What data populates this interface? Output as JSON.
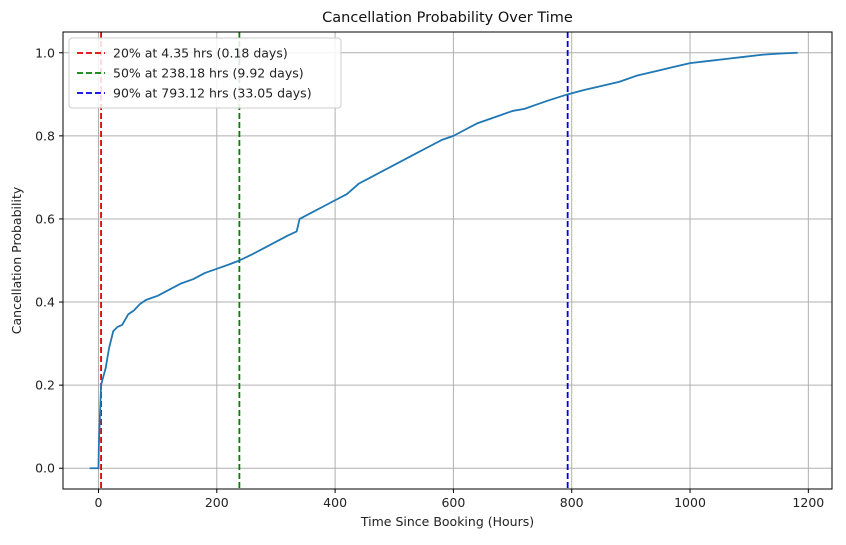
{
  "chart_data": {
    "type": "line",
    "title": "Cancellation Probability Over Time",
    "xlabel": "Time Since Booking (Hours)",
    "ylabel": "Cancellation Probability",
    "xlim": [
      -60,
      1240
    ],
    "ylim": [
      -0.05,
      1.05
    ],
    "xticks": [
      0,
      200,
      400,
      600,
      800,
      1000,
      1200
    ],
    "xtick_labels": [
      "0",
      "200",
      "400",
      "600",
      "800",
      "1000",
      "1200"
    ],
    "yticks": [
      0.0,
      0.2,
      0.4,
      0.6,
      0.8,
      1.0
    ],
    "ytick_labels": [
      "0.0",
      "0.2",
      "0.4",
      "0.6",
      "0.8",
      "1.0"
    ],
    "grid": true,
    "legend_position": "top-left",
    "series": [
      {
        "color": "#1f77b4",
        "x": [
          -15,
          -2,
          0,
          0.5,
          4.35,
          8,
          12,
          18,
          25,
          32,
          40,
          50,
          60,
          70,
          80,
          90,
          100,
          120,
          140,
          160,
          180,
          200,
          220,
          238.18,
          260,
          280,
          300,
          320,
          335,
          340,
          360,
          380,
          400,
          420,
          440,
          460,
          480,
          500,
          520,
          540,
          560,
          580,
          600,
          620,
          640,
          660,
          680,
          700,
          720,
          740,
          760,
          793.12,
          820,
          850,
          880,
          910,
          940,
          970,
          1000,
          1030,
          1060,
          1090,
          1120,
          1150,
          1182
        ],
        "y": [
          0.0,
          0.0,
          0.0,
          0.05,
          0.2,
          0.22,
          0.24,
          0.29,
          0.33,
          0.34,
          0.345,
          0.37,
          0.38,
          0.395,
          0.405,
          0.41,
          0.415,
          0.43,
          0.445,
          0.455,
          0.47,
          0.48,
          0.49,
          0.5,
          0.515,
          0.53,
          0.545,
          0.56,
          0.57,
          0.6,
          0.615,
          0.63,
          0.645,
          0.66,
          0.685,
          0.7,
          0.715,
          0.73,
          0.745,
          0.76,
          0.775,
          0.79,
          0.8,
          0.815,
          0.83,
          0.84,
          0.85,
          0.86,
          0.865,
          0.875,
          0.885,
          0.9,
          0.91,
          0.92,
          0.93,
          0.945,
          0.955,
          0.965,
          0.975,
          0.98,
          0.985,
          0.99,
          0.995,
          0.998,
          1.0
        ]
      }
    ],
    "vlines": [
      {
        "name": "20% at 4.35 hrs (0.18 days)",
        "x": 4.35,
        "color": "#e00000"
      },
      {
        "name": "50% at 238.18 hrs (9.92 days)",
        "x": 238.18,
        "color": "#008000"
      },
      {
        "name": "90% at 793.12 hrs (33.05 days)",
        "x": 793.12,
        "color": "#0000e0"
      }
    ]
  }
}
